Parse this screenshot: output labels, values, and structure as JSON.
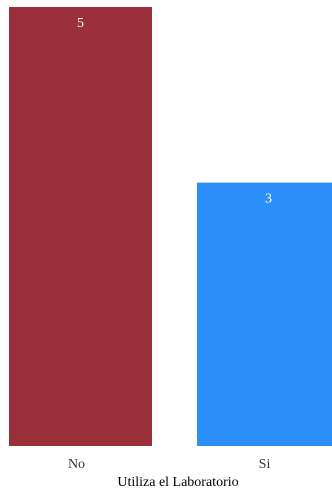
{
  "chart_data": {
    "type": "bar",
    "title": "",
    "xlabel": "Utiliza el Laboratorio",
    "ylabel": "",
    "categories": [
      "No",
      "Si"
    ],
    "values": [
      5,
      3
    ],
    "colors": [
      "#99303a",
      "#2c8ef8"
    ],
    "ylim": [
      0,
      5
    ],
    "grid": false,
    "legend": "none",
    "data_labels": [
      "5",
      "3"
    ]
  }
}
